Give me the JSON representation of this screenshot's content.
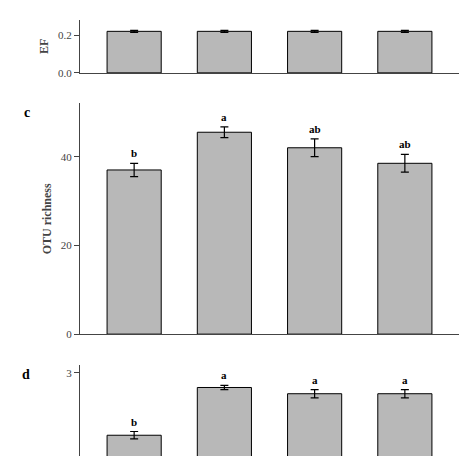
{
  "chart_data": [
    {
      "type": "bar",
      "ylabel": "EF",
      "categories": [
        null,
        null,
        null,
        null
      ],
      "values": [
        0.22,
        0.22,
        0.22,
        0.22
      ],
      "errors": [
        0.005,
        0.005,
        0.005,
        0.005
      ],
      "color": "#b8b8b8",
      "ylim": [
        0.0,
        0.28
      ],
      "yticks": [
        {
          "value": 0.0,
          "label": "0.0"
        },
        {
          "value": 0.2,
          "label": "0.2"
        }
      ],
      "grid": false,
      "tick_labels": "y"
    },
    {
      "type": "bar",
      "title": "c",
      "ylabel": "OTU richness",
      "categories": [
        null,
        null,
        null,
        null
      ],
      "values": [
        37.0,
        45.5,
        42.0,
        38.5
      ],
      "errors": [
        1.5,
        1.2,
        2.0,
        2.0
      ],
      "annotations": [
        "b",
        "a",
        "ab",
        "ab"
      ],
      "color": "#b8b8b8",
      "ylim": [
        0,
        52
      ],
      "yticks": [
        0,
        20,
        40
      ],
      "grid": false,
      "tick_labels": "y"
    },
    {
      "type": "bar",
      "title": "d",
      "categories": [
        null,
        null,
        null,
        null
      ],
      "values": [
        1.5,
        2.65,
        2.5,
        2.5
      ],
      "errors": [
        0.09,
        0.05,
        0.1,
        0.1
      ],
      "annotations": [
        "b",
        "a",
        "a",
        "a"
      ],
      "color": "#b8b8b8",
      "ylim": [
        1.0,
        3.2
      ],
      "yticks": [
        3
      ],
      "grid": false,
      "tick_labels": "y"
    }
  ]
}
